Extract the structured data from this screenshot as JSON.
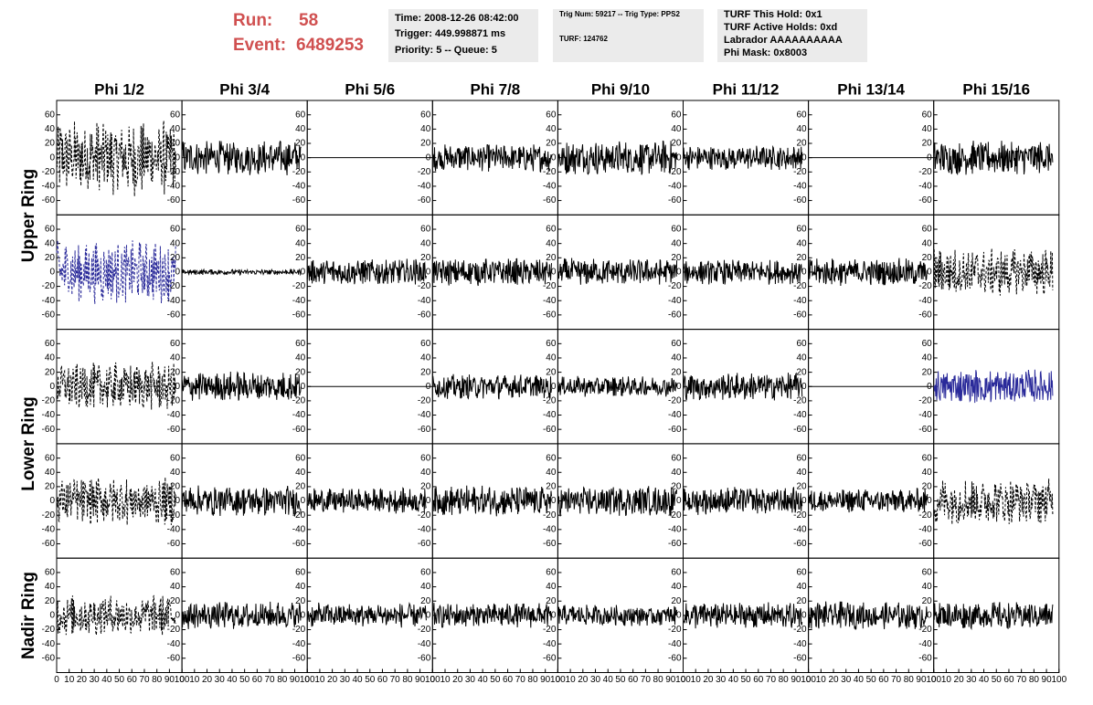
{
  "header": {
    "run_label": "Run:",
    "run": "58",
    "event_label": "Event:",
    "event": "6489253",
    "box1": [
      "Time: 2008-12-26 08:42:00",
      "Trigger: 449.998871 ms",
      "Priority: 5 -- Queue: 5"
    ],
    "box2": [
      "Trig Num: 59217 -- Trig Type: PPS2",
      "TURF: 124762"
    ],
    "box3": [
      "TURF This Hold: 0x1",
      "TURF Active Holds: 0xd",
      "Labrador AAAAAAAAAA",
      "Phi Mask: 0x8003"
    ]
  },
  "grid": {
    "columns": [
      "Phi 1/2",
      "Phi 3/4",
      "Phi 5/6",
      "Phi 7/8",
      "Phi 9/10",
      "Phi 11/12",
      "Phi 13/14",
      "Phi 15/16"
    ],
    "ring_labels": [
      "Upper Ring",
      "Lower Ring",
      "Nadir Ring"
    ],
    "xlim": [
      0,
      100
    ],
    "xticks": [
      0,
      10,
      20,
      30,
      40,
      50,
      60,
      70,
      80,
      90,
      100
    ],
    "ylim": [
      -75,
      75
    ],
    "yticks": [
      -60,
      -40,
      -20,
      0,
      20,
      40,
      60
    ],
    "panels": [
      [
        {
          "style": "dashed",
          "color": "#000000",
          "amplitude": 55
        },
        {
          "style": "solid",
          "color": "#000000",
          "amplitude": 25
        },
        {
          "style": "flat",
          "color": "#000000",
          "amplitude": 0
        },
        {
          "style": "solid",
          "color": "#000000",
          "amplitude": 20
        },
        {
          "style": "solid",
          "color": "#000000",
          "amplitude": 25
        },
        {
          "style": "solid",
          "color": "#000000",
          "amplitude": 18
        },
        {
          "style": "flat",
          "color": "#000000",
          "amplitude": 0
        },
        {
          "style": "solid",
          "color": "#000000",
          "amplitude": 25
        }
      ],
      [
        {
          "style": "dashed",
          "color": "#2a2a9a",
          "amplitude": 45
        },
        {
          "style": "solid",
          "color": "#000000",
          "amplitude": 4
        },
        {
          "style": "solid",
          "color": "#000000",
          "amplitude": 20
        },
        {
          "style": "solid",
          "color": "#000000",
          "amplitude": 20
        },
        {
          "style": "solid",
          "color": "#000000",
          "amplitude": 20
        },
        {
          "style": "solid",
          "color": "#000000",
          "amplitude": 18
        },
        {
          "style": "solid",
          "color": "#000000",
          "amplitude": 20
        },
        {
          "style": "dashed",
          "color": "#000000",
          "amplitude": 35
        }
      ],
      [
        {
          "style": "dashed",
          "color": "#000000",
          "amplitude": 35
        },
        {
          "style": "solid",
          "color": "#000000",
          "amplitude": 22
        },
        {
          "style": "flat",
          "color": "#000000",
          "amplitude": 0
        },
        {
          "style": "solid",
          "color": "#000000",
          "amplitude": 18
        },
        {
          "style": "solid",
          "color": "#000000",
          "amplitude": 15
        },
        {
          "style": "solid",
          "color": "#000000",
          "amplitude": 20
        },
        {
          "style": "flat",
          "color": "#000000",
          "amplitude": 0
        },
        {
          "style": "solid",
          "color": "#2a2a9a",
          "amplitude": 25
        }
      ],
      [
        {
          "style": "dashed",
          "color": "#000000",
          "amplitude": 35
        },
        {
          "style": "solid",
          "color": "#000000",
          "amplitude": 22
        },
        {
          "style": "solid",
          "color": "#000000",
          "amplitude": 18
        },
        {
          "style": "solid",
          "color": "#000000",
          "amplitude": 22
        },
        {
          "style": "solid",
          "color": "#000000",
          "amplitude": 22
        },
        {
          "style": "solid",
          "color": "#000000",
          "amplitude": 20
        },
        {
          "style": "solid",
          "color": "#000000",
          "amplitude": 18
        },
        {
          "style": "dashed",
          "color": "#000000",
          "amplitude": 35
        }
      ],
      [
        {
          "style": "dashed",
          "color": "#000000",
          "amplitude": 30
        },
        {
          "style": "solid",
          "color": "#000000",
          "amplitude": 20
        },
        {
          "style": "solid",
          "color": "#000000",
          "amplitude": 18
        },
        {
          "style": "solid",
          "color": "#000000",
          "amplitude": 18
        },
        {
          "style": "solid",
          "color": "#000000",
          "amplitude": 15
        },
        {
          "style": "solid",
          "color": "#000000",
          "amplitude": 20
        },
        {
          "style": "solid",
          "color": "#000000",
          "amplitude": 20
        },
        {
          "style": "solid",
          "color": "#000000",
          "amplitude": 20
        }
      ]
    ]
  }
}
